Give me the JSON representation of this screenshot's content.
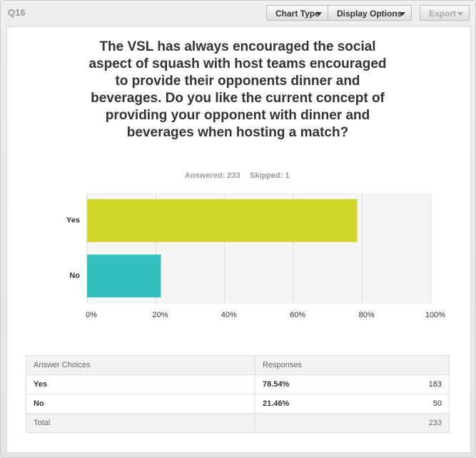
{
  "header": {
    "question": "Q16",
    "buttons": [
      "Chart Type",
      "Display Options",
      "Export"
    ]
  },
  "chart_data": {
    "type": "bar",
    "orientation": "horizontal",
    "title": "The VSL has always encouraged the social aspect of squash with host teams encouraged to provide their opponents dinner and beverages. Do you like the current concept of providing your opponent with dinner and beverages when hosting a match?",
    "answered": "Answered: 233",
    "skipped": "Skipped: 1",
    "categories": [
      "Yes",
      "No"
    ],
    "values": [
      78.54,
      21.46
    ],
    "colors": [
      "#d1d62a",
      "#36bfbf"
    ],
    "xlim": [
      0,
      100
    ],
    "xticks": [
      {
        "value": 0,
        "label": "0%"
      },
      {
        "value": 20,
        "label": "20%"
      },
      {
        "value": 40,
        "label": "40%"
      },
      {
        "value": 60,
        "label": "60%"
      },
      {
        "value": 80,
        "label": "80%"
      },
      {
        "value": 100,
        "label": "100%"
      }
    ],
    "grid": true
  },
  "table": {
    "columns": [
      "Answer Choices",
      "Responses"
    ],
    "rows": [
      [
        "Yes",
        "78.54%",
        "183"
      ],
      [
        "No",
        "21.46%",
        "50"
      ]
    ],
    "total": [
      "Total",
      "233"
    ]
  }
}
